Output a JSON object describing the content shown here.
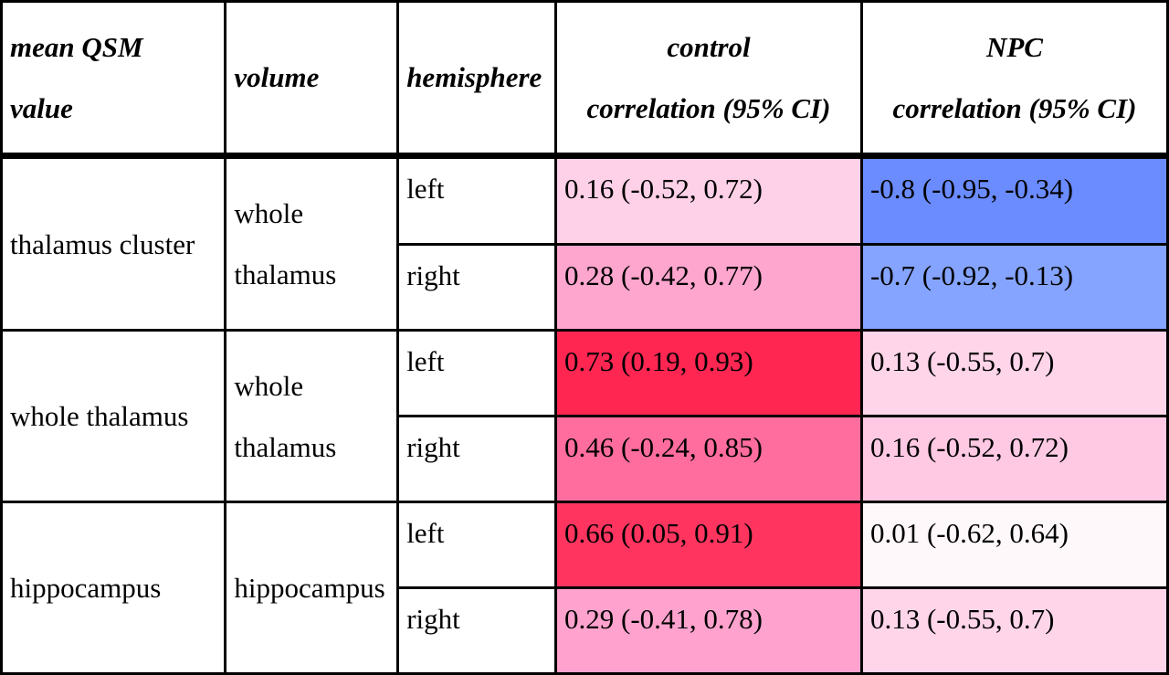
{
  "header": {
    "col1_line1": "mean QSM",
    "col1_line2": "value",
    "col2": "volume",
    "col3": "hemisphere",
    "col4_line1": "control",
    "col4_line2": "correlation (95% CI)",
    "col5_line1": "NPC",
    "col5_line2": "correlation (95% CI)"
  },
  "groups": [
    {
      "region": "thalamus cluster",
      "volume_line1": "whole",
      "volume_line2": "thalamus",
      "rows": [
        {
          "hemisphere": "left",
          "control": "0.16 (-0.52, 0.72)",
          "control_color": "#ffd1e8",
          "npc": "-0.8 (-0.95, -0.34)",
          "npc_color": "#6b8cff"
        },
        {
          "hemisphere": "right",
          "control": "0.28 (-0.42, 0.77)",
          "control_color": "#ffa6cf",
          "npc": "-0.7 (-0.92, -0.13)",
          "npc_color": "#85a4ff"
        }
      ]
    },
    {
      "region": "whole thalamus",
      "volume_line1": "whole",
      "volume_line2": "thalamus",
      "rows": [
        {
          "hemisphere": "left",
          "control": "0.73 (0.19, 0.93)",
          "control_color": "#ff2652",
          "npc": "0.13 (-0.55, 0.7)",
          "npc_color": "#ffd5ea"
        },
        {
          "hemisphere": "right",
          "control": "0.46 (-0.24, 0.85)",
          "control_color": "#ff6d9f",
          "npc": "0.16 (-0.52, 0.72)",
          "npc_color": "#ffc9e3"
        }
      ]
    },
    {
      "region": "hippocampus",
      "volume_line1": "hippocampus",
      "volume_line2": "",
      "rows": [
        {
          "hemisphere": "left",
          "control": "0.66 (0.05, 0.91)",
          "control_color": "#ff3560",
          "npc": "0.01 (-0.62, 0.64)",
          "npc_color": "#fff8fb"
        },
        {
          "hemisphere": "right",
          "control": "0.29 (-0.41, 0.78)",
          "control_color": "#ffa3ce",
          "npc": "0.13 (-0.55, 0.7)",
          "npc_color": "#ffd5ea"
        }
      ]
    }
  ]
}
